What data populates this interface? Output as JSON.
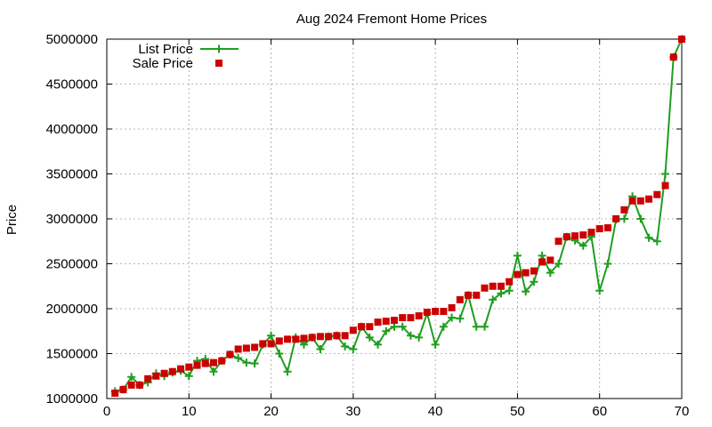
{
  "chart_data": {
    "type": "line",
    "title": "Aug 2024 Fremont Home Prices",
    "xlabel": "",
    "ylabel": "Price",
    "xlim": [
      0,
      70
    ],
    "ylim": [
      1000000,
      5000000
    ],
    "xticks": [
      0,
      10,
      20,
      30,
      40,
      50,
      60,
      70
    ],
    "yticks": [
      1000000,
      1500000,
      2000000,
      2500000,
      3000000,
      3500000,
      4000000,
      4500000,
      5000000
    ],
    "ytick_labels": [
      "1000000",
      "1500000",
      "2000000",
      "2500000",
      "3000000",
      "3500000",
      "4000000",
      "4500000",
      "5000000"
    ],
    "xtick_labels": [
      "0",
      "10",
      "20",
      "30",
      "40",
      "50",
      "60",
      "70"
    ],
    "grid": true,
    "legend_position": "top-left",
    "x": [
      1,
      2,
      3,
      4,
      5,
      6,
      7,
      8,
      9,
      10,
      11,
      12,
      13,
      14,
      15,
      16,
      17,
      18,
      19,
      20,
      21,
      22,
      23,
      24,
      25,
      26,
      27,
      28,
      29,
      30,
      31,
      32,
      33,
      34,
      35,
      36,
      37,
      38,
      39,
      40,
      41,
      42,
      43,
      44,
      45,
      46,
      47,
      48,
      49,
      50,
      51,
      52,
      53,
      54,
      55,
      56,
      57,
      58,
      59,
      60,
      61,
      62,
      63,
      64,
      65,
      66,
      67,
      68,
      69,
      70
    ],
    "series": [
      {
        "name": "List Price",
        "style": "line-plus",
        "color": "#1f9e1f",
        "values": [
          1080000,
          1100000,
          1240000,
          1150000,
          1180000,
          1280000,
          1250000,
          1290000,
          1310000,
          1250000,
          1420000,
          1440000,
          1300000,
          1420000,
          1490000,
          1450000,
          1400000,
          1390000,
          1600000,
          1700000,
          1500000,
          1300000,
          1680000,
          1600000,
          1680000,
          1550000,
          1690000,
          1700000,
          1580000,
          1550000,
          1800000,
          1680000,
          1600000,
          1750000,
          1800000,
          1800000,
          1700000,
          1680000,
          1950000,
          1600000,
          1800000,
          1900000,
          1890000,
          2150000,
          1800000,
          1800000,
          2100000,
          2170000,
          2200000,
          2590000,
          2190000,
          2300000,
          2590000,
          2400000,
          2500000,
          2800000,
          2760000,
          2700000,
          2800000,
          2200000,
          2500000,
          2990000,
          3000000,
          3250000,
          3000000,
          2790000,
          2750000,
          3500000,
          4800000,
          5000000
        ]
      },
      {
        "name": "Sale Price",
        "style": "square",
        "color": "#cc0000",
        "values": [
          1060000,
          1100000,
          1150000,
          1150000,
          1220000,
          1250000,
          1280000,
          1300000,
          1330000,
          1350000,
          1370000,
          1390000,
          1400000,
          1420000,
          1490000,
          1550000,
          1560000,
          1570000,
          1610000,
          1610000,
          1640000,
          1660000,
          1660000,
          1670000,
          1680000,
          1690000,
          1690000,
          1700000,
          1700000,
          1760000,
          1800000,
          1800000,
          1850000,
          1860000,
          1870000,
          1900000,
          1900000,
          1920000,
          1960000,
          1970000,
          1970000,
          2010000,
          2100000,
          2150000,
          2150000,
          2230000,
          2250000,
          2250000,
          2300000,
          2380000,
          2400000,
          2420000,
          2520000,
          2540000,
          2750000,
          2800000,
          2810000,
          2820000,
          2850000,
          2890000,
          2900000,
          3000000,
          3100000,
          3200000,
          3200000,
          3220000,
          3270000,
          3370000,
          4800000,
          5000000
        ]
      }
    ]
  }
}
